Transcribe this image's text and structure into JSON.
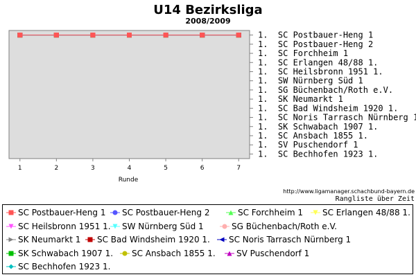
{
  "chart_data": {
    "type": "line",
    "title": "U14 Bezirksliga",
    "subtitle": "2008/2009",
    "xlabel": "Runde",
    "ylabel": "",
    "x": [
      1,
      2,
      3,
      4,
      5,
      6,
      7
    ],
    "xlim": [
      0.7,
      7.3
    ],
    "ylim": [
      0.5,
      14.5
    ],
    "grid": false,
    "y_tick_labels": [
      "1.  SC Postbauer-Heng 1",
      "1.  SC Postbauer-Heng 2",
      "1.  SC Forchheim 1",
      "1.  SC Erlangen 48/88 1.",
      "1.  SC Heilsbronn 1951 1.",
      "1.  SW Nürnberg Süd 1",
      "1.  SG Büchenbach/Roth e.V.",
      "1.  SK Neumarkt 1",
      "1.  SC Bad Windsheim 1920 1.",
      "1.  SC Noris Tarrasch Nürnberg 1",
      "1.  SK Schwabach 1907 1.",
      "1.  SC Ansbach 1855 1.",
      "1.  SV Puschendorf 1",
      "1.  SC Bechhofen 1923 1."
    ],
    "series": [
      {
        "name": "SC Postbauer-Heng 1",
        "values": [
          1,
          1,
          1,
          1,
          1,
          1,
          1
        ]
      },
      {
        "name": "SC Postbauer-Heng 2",
        "values": [
          1,
          1,
          1,
          1,
          1,
          1,
          1
        ]
      },
      {
        "name": "SC Forchheim 1",
        "values": [
          1,
          1,
          1,
          1,
          1,
          1,
          1
        ]
      },
      {
        "name": "SC Erlangen 48/88 1.",
        "values": [
          1,
          1,
          1,
          1,
          1,
          1,
          1
        ]
      },
      {
        "name": "SC Heilsbronn 1951 1.",
        "values": [
          1,
          1,
          1,
          1,
          1,
          1,
          1
        ]
      },
      {
        "name": "SW Nürnberg Süd 1",
        "values": [
          1,
          1,
          1,
          1,
          1,
          1,
          1
        ]
      },
      {
        "name": "SG Büchenbach/Roth e.V.",
        "values": [
          1,
          1,
          1,
          1,
          1,
          1,
          1
        ]
      },
      {
        "name": "SK Neumarkt 1",
        "values": [
          1,
          1,
          1,
          1,
          1,
          1,
          1
        ]
      },
      {
        "name": "SC Bad Windsheim 1920 1.",
        "values": [
          1,
          1,
          1,
          1,
          1,
          1,
          1
        ]
      },
      {
        "name": "SC Noris Tarrasch Nürnberg 1",
        "values": [
          1,
          1,
          1,
          1,
          1,
          1,
          1
        ]
      },
      {
        "name": "SK Schwabach 1907 1.",
        "values": [
          1,
          1,
          1,
          1,
          1,
          1,
          1
        ]
      },
      {
        "name": "SC Ansbach 1855 1.",
        "values": [
          1,
          1,
          1,
          1,
          1,
          1,
          1
        ]
      },
      {
        "name": "SV Puschendorf 1",
        "values": [
          1,
          1,
          1,
          1,
          1,
          1,
          1
        ]
      },
      {
        "name": "SC Bechhofen 1923 1.",
        "values": [
          1,
          1,
          1,
          1,
          1,
          1,
          1
        ]
      }
    ],
    "legend_position": "bottom",
    "source_url": "http://www.ligamanager.schachbund-bayern.de",
    "caption": "Rangliste über Zeit"
  },
  "series_styles": [
    {
      "color": "#ff5555",
      "marker": "square"
    },
    {
      "color": "#5555ff",
      "marker": "circle"
    },
    {
      "color": "#55ff55",
      "marker": "triangle-up"
    },
    {
      "color": "#ffff55",
      "marker": "triangle-down"
    },
    {
      "color": "#ff55ff",
      "marker": "triangle-down"
    },
    {
      "color": "#55ffff",
      "marker": "triangle-down"
    },
    {
      "color": "#ffafaf",
      "marker": "circle"
    },
    {
      "color": "#808080",
      "marker": "triangle-right"
    },
    {
      "color": "#c00000",
      "marker": "square"
    },
    {
      "color": "#0000c0",
      "marker": "triangle-left"
    },
    {
      "color": "#00c000",
      "marker": "square"
    },
    {
      "color": "#c0c000",
      "marker": "circle"
    },
    {
      "color": "#c000c0",
      "marker": "triangle-up"
    },
    {
      "color": "#00c0c0",
      "marker": "diamond"
    }
  ],
  "colors": {
    "plot_background": "#dddddd",
    "axis": "#808080"
  }
}
